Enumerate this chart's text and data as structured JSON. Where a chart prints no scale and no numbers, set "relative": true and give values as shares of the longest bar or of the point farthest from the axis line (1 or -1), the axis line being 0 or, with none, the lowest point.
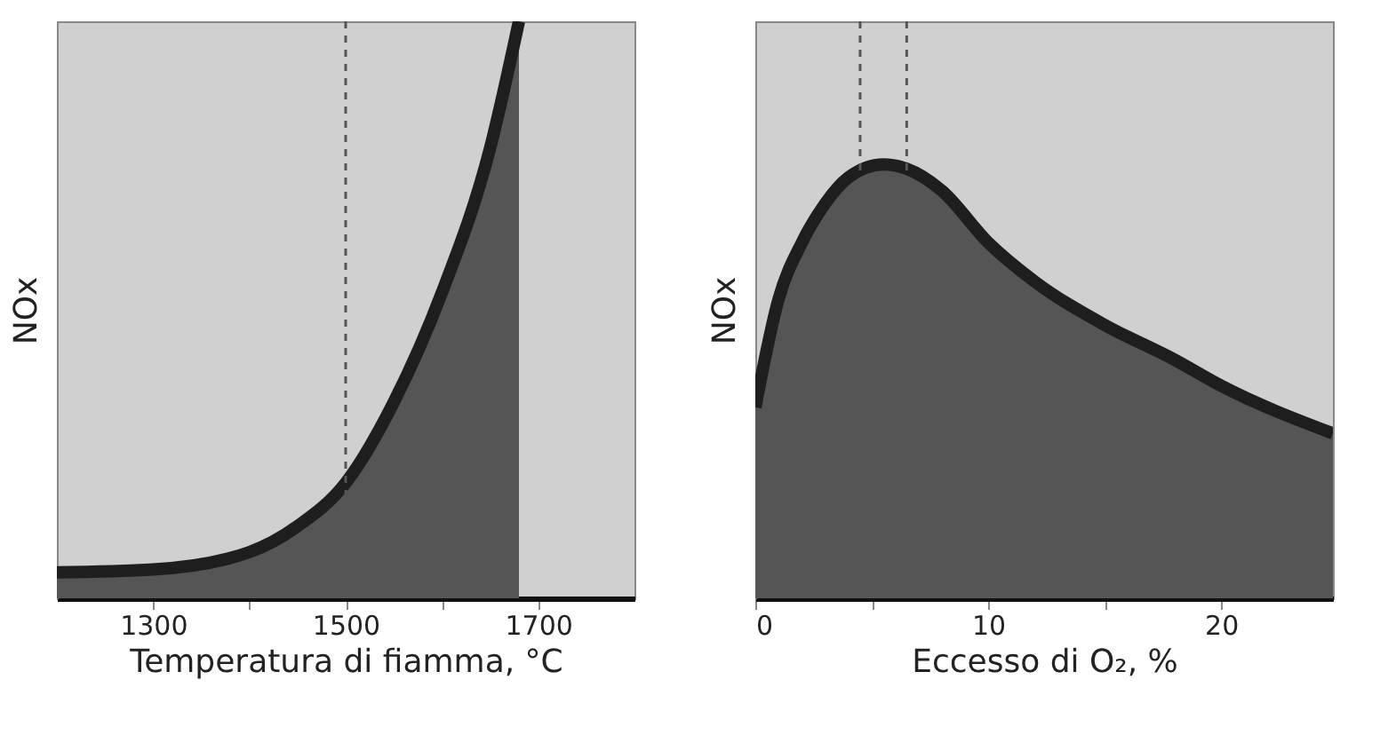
{
  "chart_data": [
    {
      "type": "area",
      "xlabel": "Temperatura di fiamma, °C",
      "ylabel": "NOx",
      "relative": true,
      "xlim": [
        1200,
        1800
      ],
      "xticks": [
        1300,
        {
          "value": 1400,
          "label": null
        },
        1500,
        {
          "value": 1600,
          "label": null
        },
        1700
      ],
      "x": [
        1200,
        1300,
        1400,
        1450,
        1500,
        1550,
        1600,
        1650,
        1680
      ],
      "series": [
        {
          "color": "#555555",
          "values": [
            0.045,
            0.05,
            0.08,
            0.125,
            0.2,
            0.34,
            0.53,
            0.78,
            1.0
          ]
        }
      ],
      "ref_lines": [
        {
          "axis": "x",
          "value": 1500,
          "label": null,
          "line_style": "dashed",
          "color": "#555555"
        }
      ],
      "grid": false
    },
    {
      "type": "area",
      "xlabel": "Eccesso di O₂, %",
      "ylabel": "NOx",
      "relative": true,
      "xlim": [
        0,
        24.8
      ],
      "xticks": [
        0,
        {
          "value": 5,
          "label": null
        },
        10,
        {
          "value": 15,
          "label": null
        },
        20
      ],
      "x": [
        0,
        1,
        2,
        3,
        4,
        5.5,
        6.5,
        8,
        10,
        12,
        15,
        18,
        20,
        24.8
      ],
      "series": [
        {
          "color": "#555555",
          "values": [
            0.44,
            0.69,
            0.82,
            0.91,
            0.97,
            1.0,
            0.99,
            0.94,
            0.82,
            0.73,
            0.63,
            0.55,
            0.49,
            0.38
          ]
        }
      ],
      "ref_lines": [
        {
          "axis": "x",
          "value": 4.5,
          "label": null,
          "line_style": "dashed",
          "color": "#555555"
        },
        {
          "axis": "x",
          "value": 6.5,
          "label": null,
          "line_style": "dashed",
          "color": "#555555"
        }
      ],
      "grid": false
    }
  ]
}
